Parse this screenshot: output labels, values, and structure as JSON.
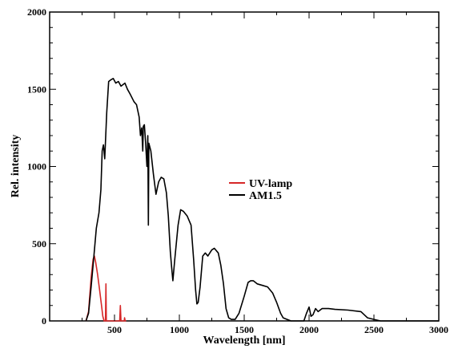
{
  "chart_data": {
    "type": "line",
    "title": "",
    "xlabel": "Wavelength [nm]",
    "ylabel": "Rel. intensity",
    "xlim": [
      0,
      3000
    ],
    "ylim": [
      0,
      2000
    ],
    "x_ticks": [
      0,
      500,
      1000,
      1500,
      2000,
      2500,
      3000
    ],
    "x_tick_labels": [
      "",
      "500",
      "1000",
      "1500",
      "2000",
      "2500",
      "3000"
    ],
    "y_ticks": [
      0,
      500,
      1000,
      1500,
      2000
    ],
    "y_tick_labels": [
      "0",
      "500",
      "1000",
      "1500",
      "2000"
    ],
    "grid": false,
    "legend_position": "center-right",
    "series": [
      {
        "name": "UV-lamp",
        "color": "#d62728",
        "points": [
          [
            280,
            0
          ],
          [
            300,
            60
          ],
          [
            320,
            280
          ],
          [
            335,
            400
          ],
          [
            345,
            420
          ],
          [
            355,
            380
          ],
          [
            370,
            300
          ],
          [
            385,
            200
          ],
          [
            400,
            100
          ],
          [
            410,
            30
          ],
          [
            420,
            0
          ],
          [
            430,
            0
          ],
          [
            434,
            240
          ],
          [
            437,
            0
          ],
          [
            450,
            0
          ],
          [
            540,
            0
          ],
          [
            545,
            100
          ],
          [
            550,
            0
          ],
          [
            560,
            0
          ],
          [
            575,
            0
          ],
          [
            578,
            20
          ],
          [
            582,
            0
          ],
          [
            590,
            0
          ]
        ]
      },
      {
        "name": "AM1.5",
        "color": "#000000",
        "points": [
          [
            280,
            0
          ],
          [
            300,
            50
          ],
          [
            320,
            220
          ],
          [
            340,
            410
          ],
          [
            360,
            600
          ],
          [
            380,
            700
          ],
          [
            395,
            850
          ],
          [
            405,
            1100
          ],
          [
            415,
            1140
          ],
          [
            425,
            1050
          ],
          [
            440,
            1350
          ],
          [
            455,
            1550
          ],
          [
            470,
            1560
          ],
          [
            490,
            1570
          ],
          [
            510,
            1540
          ],
          [
            530,
            1550
          ],
          [
            550,
            1520
          ],
          [
            580,
            1540
          ],
          [
            600,
            1500
          ],
          [
            620,
            1470
          ],
          [
            650,
            1420
          ],
          [
            670,
            1400
          ],
          [
            690,
            1320
          ],
          [
            700,
            1200
          ],
          [
            710,
            1250
          ],
          [
            718,
            1100
          ],
          [
            722,
            1260
          ],
          [
            730,
            1270
          ],
          [
            740,
            1150
          ],
          [
            750,
            1000
          ],
          [
            757,
            1200
          ],
          [
            761,
            620
          ],
          [
            765,
            1150
          ],
          [
            780,
            1100
          ],
          [
            800,
            950
          ],
          [
            820,
            820
          ],
          [
            840,
            900
          ],
          [
            860,
            930
          ],
          [
            880,
            920
          ],
          [
            900,
            830
          ],
          [
            915,
            680
          ],
          [
            930,
            450
          ],
          [
            940,
            350
          ],
          [
            950,
            260
          ],
          [
            965,
            400
          ],
          [
            990,
            620
          ],
          [
            1010,
            720
          ],
          [
            1030,
            710
          ],
          [
            1060,
            680
          ],
          [
            1090,
            620
          ],
          [
            1110,
            400
          ],
          [
            1125,
            200
          ],
          [
            1135,
            110
          ],
          [
            1145,
            120
          ],
          [
            1160,
            220
          ],
          [
            1180,
            420
          ],
          [
            1200,
            440
          ],
          [
            1220,
            420
          ],
          [
            1250,
            460
          ],
          [
            1270,
            470
          ],
          [
            1300,
            440
          ],
          [
            1320,
            360
          ],
          [
            1340,
            240
          ],
          [
            1360,
            80
          ],
          [
            1380,
            20
          ],
          [
            1400,
            10
          ],
          [
            1430,
            10
          ],
          [
            1460,
            50
          ],
          [
            1500,
            160
          ],
          [
            1530,
            250
          ],
          [
            1550,
            260
          ],
          [
            1570,
            260
          ],
          [
            1600,
            240
          ],
          [
            1640,
            230
          ],
          [
            1680,
            220
          ],
          [
            1720,
            180
          ],
          [
            1750,
            120
          ],
          [
            1780,
            50
          ],
          [
            1800,
            20
          ],
          [
            1830,
            10
          ],
          [
            1860,
            0
          ],
          [
            1960,
            0
          ],
          [
            1980,
            50
          ],
          [
            2000,
            90
          ],
          [
            2015,
            30
          ],
          [
            2030,
            40
          ],
          [
            2050,
            80
          ],
          [
            2070,
            60
          ],
          [
            2100,
            80
          ],
          [
            2150,
            80
          ],
          [
            2200,
            75
          ],
          [
            2300,
            70
          ],
          [
            2400,
            60
          ],
          [
            2450,
            20
          ],
          [
            2500,
            10
          ],
          [
            2550,
            0
          ],
          [
            2600,
            0
          ],
          [
            2700,
            0
          ],
          [
            2800,
            0
          ],
          [
            2900,
            0
          ],
          [
            3000,
            0
          ]
        ]
      }
    ]
  }
}
